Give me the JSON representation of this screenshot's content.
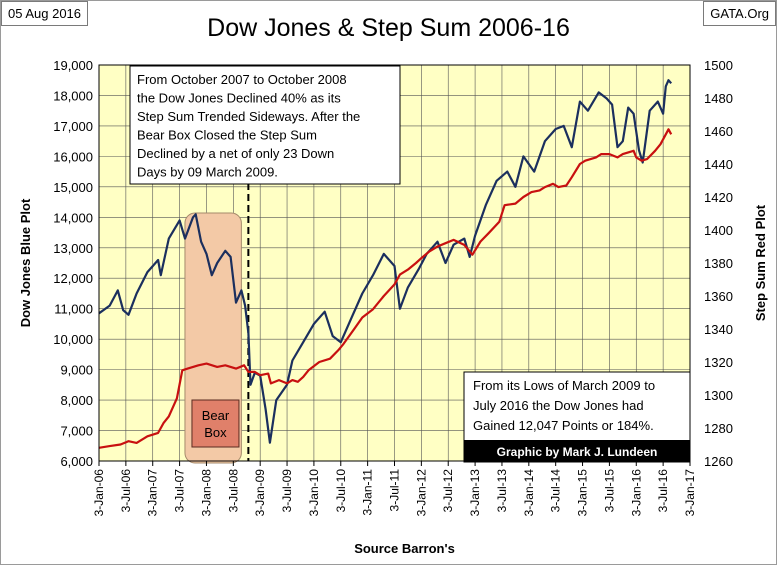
{
  "header": {
    "date": "05 Aug 2016",
    "source": "GATA.Org"
  },
  "colors": {
    "plot_bg": "#ffffc4",
    "dow_line": "#1b2f5e",
    "step_line": "#c81010",
    "bear_box_fill": "#f3c9a6",
    "bear_label_fill": "#e0806a",
    "credit_bg": "#000000"
  },
  "chart_data": {
    "type": "line",
    "title": "Dow Jones & Step Sum 2006-16",
    "xlabel": "Source Barron's",
    "ylabel_left": "Dow Jones Blue Plot",
    "ylabel_right": "Step Sum Red Plot",
    "ylim_left": [
      6000,
      19000
    ],
    "ylim_right": [
      1260,
      1500
    ],
    "yticks_left": [
      "6,000",
      "7,000",
      "8,000",
      "9,000",
      "10,000",
      "11,000",
      "12,000",
      "13,000",
      "14,000",
      "15,000",
      "16,000",
      "17,000",
      "18,000",
      "19,000"
    ],
    "yticks_right": [
      "1260",
      "1280",
      "1300",
      "1320",
      "1340",
      "1360",
      "1380",
      "1400",
      "1420",
      "1440",
      "1460",
      "1480",
      "1500"
    ],
    "x_range": [
      2006.0,
      2017.0
    ],
    "xticks": [
      "3-Jan-06",
      "3-Jul-06",
      "3-Jan-07",
      "3-Jul-07",
      "3-Jan-08",
      "3-Jul-08",
      "3-Jan-09",
      "3-Jul-09",
      "3-Jan-10",
      "3-Jul-10",
      "3-Jan-11",
      "3-Jul-11",
      "3-Jan-12",
      "3-Jul-12",
      "3-Jan-13",
      "3-Jul-13",
      "3-Jan-14",
      "3-Jul-14",
      "3-Jan-15",
      "3-Jul-15",
      "3-Jan-16",
      "3-Jul-16",
      "3-Jan-17"
    ],
    "grid": true,
    "series": [
      {
        "name": "Dow Jones",
        "axis": "left",
        "points": [
          [
            2006.0,
            10850
          ],
          [
            2006.2,
            11100
          ],
          [
            2006.35,
            11600
          ],
          [
            2006.45,
            10950
          ],
          [
            2006.55,
            10800
          ],
          [
            2006.7,
            11500
          ],
          [
            2006.9,
            12200
          ],
          [
            2007.1,
            12600
          ],
          [
            2007.15,
            12100
          ],
          [
            2007.3,
            13300
          ],
          [
            2007.5,
            13900
          ],
          [
            2007.6,
            13300
          ],
          [
            2007.75,
            14000
          ],
          [
            2007.8,
            14100
          ],
          [
            2007.9,
            13200
          ],
          [
            2008.0,
            12800
          ],
          [
            2008.1,
            12100
          ],
          [
            2008.2,
            12500
          ],
          [
            2008.35,
            12900
          ],
          [
            2008.45,
            12700
          ],
          [
            2008.55,
            11200
          ],
          [
            2008.65,
            11600
          ],
          [
            2008.72,
            11100
          ],
          [
            2008.78,
            10200
          ],
          [
            2008.82,
            8500
          ],
          [
            2008.9,
            8900
          ],
          [
            2009.0,
            8800
          ],
          [
            2009.1,
            7700
          ],
          [
            2009.18,
            6600
          ],
          [
            2009.3,
            8000
          ],
          [
            2009.5,
            8500
          ],
          [
            2009.6,
            9300
          ],
          [
            2009.8,
            9900
          ],
          [
            2010.0,
            10500
          ],
          [
            2010.2,
            10900
          ],
          [
            2010.35,
            10100
          ],
          [
            2010.5,
            9900
          ],
          [
            2010.7,
            10700
          ],
          [
            2010.9,
            11500
          ],
          [
            2011.1,
            12100
          ],
          [
            2011.3,
            12800
          ],
          [
            2011.5,
            12400
          ],
          [
            2011.6,
            11000
          ],
          [
            2011.75,
            11700
          ],
          [
            2011.95,
            12300
          ],
          [
            2012.1,
            12800
          ],
          [
            2012.3,
            13200
          ],
          [
            2012.45,
            12500
          ],
          [
            2012.6,
            13100
          ],
          [
            2012.8,
            13300
          ],
          [
            2012.9,
            12700
          ],
          [
            2013.0,
            13400
          ],
          [
            2013.2,
            14400
          ],
          [
            2013.4,
            15200
          ],
          [
            2013.6,
            15500
          ],
          [
            2013.75,
            15000
          ],
          [
            2013.9,
            16000
          ],
          [
            2014.1,
            15500
          ],
          [
            2014.3,
            16500
          ],
          [
            2014.5,
            16900
          ],
          [
            2014.65,
            17000
          ],
          [
            2014.8,
            16300
          ],
          [
            2014.95,
            17800
          ],
          [
            2015.1,
            17500
          ],
          [
            2015.3,
            18100
          ],
          [
            2015.45,
            17900
          ],
          [
            2015.55,
            17700
          ],
          [
            2015.65,
            16300
          ],
          [
            2015.75,
            16500
          ],
          [
            2015.85,
            17600
          ],
          [
            2015.95,
            17400
          ],
          [
            2016.05,
            16200
          ],
          [
            2016.12,
            15800
          ],
          [
            2016.25,
            17500
          ],
          [
            2016.4,
            17800
          ],
          [
            2016.5,
            17400
          ],
          [
            2016.55,
            18300
          ],
          [
            2016.6,
            18500
          ],
          [
            2016.65,
            18400
          ]
        ]
      },
      {
        "name": "Step Sum",
        "axis": "right",
        "points": [
          [
            2006.0,
            1268
          ],
          [
            2006.2,
            1269
          ],
          [
            2006.4,
            1270
          ],
          [
            2006.55,
            1272
          ],
          [
            2006.7,
            1271
          ],
          [
            2006.9,
            1275
          ],
          [
            2007.1,
            1277
          ],
          [
            2007.2,
            1283
          ],
          [
            2007.3,
            1287
          ],
          [
            2007.45,
            1298
          ],
          [
            2007.55,
            1315
          ],
          [
            2007.65,
            1316
          ],
          [
            2007.85,
            1318
          ],
          [
            2008.0,
            1319
          ],
          [
            2008.2,
            1317
          ],
          [
            2008.35,
            1318
          ],
          [
            2008.55,
            1316
          ],
          [
            2008.7,
            1318
          ],
          [
            2008.78,
            1314
          ],
          [
            2008.9,
            1314
          ],
          [
            2009.0,
            1312
          ],
          [
            2009.15,
            1313
          ],
          [
            2009.2,
            1307
          ],
          [
            2009.35,
            1309
          ],
          [
            2009.5,
            1307
          ],
          [
            2009.6,
            1309
          ],
          [
            2009.7,
            1308
          ],
          [
            2009.8,
            1311
          ],
          [
            2009.9,
            1315
          ],
          [
            2010.1,
            1320
          ],
          [
            2010.3,
            1322
          ],
          [
            2010.45,
            1327
          ],
          [
            2010.55,
            1331
          ],
          [
            2010.75,
            1340
          ],
          [
            2010.9,
            1347
          ],
          [
            2011.1,
            1352
          ],
          [
            2011.3,
            1360
          ],
          [
            2011.5,
            1367
          ],
          [
            2011.6,
            1373
          ],
          [
            2011.75,
            1376
          ],
          [
            2011.9,
            1380
          ],
          [
            2012.0,
            1383
          ],
          [
            2012.15,
            1387
          ],
          [
            2012.3,
            1390
          ],
          [
            2012.45,
            1392
          ],
          [
            2012.6,
            1394
          ],
          [
            2012.8,
            1391
          ],
          [
            2012.95,
            1385
          ],
          [
            2013.1,
            1393
          ],
          [
            2013.25,
            1398
          ],
          [
            2013.45,
            1405
          ],
          [
            2013.55,
            1415
          ],
          [
            2013.75,
            1416
          ],
          [
            2013.9,
            1420
          ],
          [
            2014.05,
            1423
          ],
          [
            2014.2,
            1424
          ],
          [
            2014.3,
            1426
          ],
          [
            2014.45,
            1428
          ],
          [
            2014.55,
            1426
          ],
          [
            2014.7,
            1427
          ],
          [
            2014.8,
            1432
          ],
          [
            2014.95,
            1440
          ],
          [
            2015.05,
            1442
          ],
          [
            2015.25,
            1444
          ],
          [
            2015.35,
            1446
          ],
          [
            2015.5,
            1446
          ],
          [
            2015.65,
            1444
          ],
          [
            2015.75,
            1446
          ],
          [
            2015.85,
            1447
          ],
          [
            2015.95,
            1448
          ],
          [
            2016.0,
            1444
          ],
          [
            2016.1,
            1442
          ],
          [
            2016.2,
            1443
          ],
          [
            2016.35,
            1448
          ],
          [
            2016.45,
            1452
          ],
          [
            2016.55,
            1458
          ],
          [
            2016.6,
            1461
          ],
          [
            2016.65,
            1458
          ]
        ]
      }
    ],
    "annotations": {
      "bear_box": {
        "x_start": 2007.6,
        "x_end": 2008.65,
        "label": [
          "Bear",
          "Box"
        ]
      },
      "dashed_line_x": 2008.78,
      "note_top": [
        "From  October 2007 to October 2008",
        "the Dow Jones Declined 40% as its",
        "Step Sum Trended Sideways.  After the",
        "Bear Box Closed the Step Sum",
        "Declined by a net of only 23 Down",
        "Days by 09 March 2009."
      ],
      "note_bottom": [
        "From  its Lows of March 2009 to",
        "July 2016 the Dow Jones had",
        "Gained 12,047 Points or 184%."
      ],
      "credit": "Graphic by Mark J. Lundeen"
    }
  }
}
